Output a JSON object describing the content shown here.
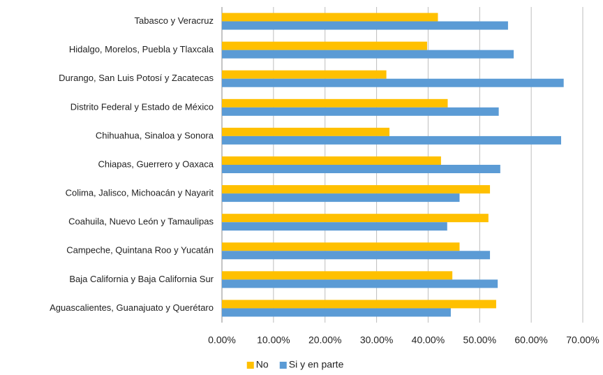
{
  "chart_data": {
    "type": "bar",
    "orientation": "horizontal",
    "categories": [
      "Tabasco y Veracruz",
      "Hidalgo, Morelos, Puebla y Tlaxcala",
      "Durango, San Luis Potosí y Zacatecas",
      "Distrito Federal y Estado de México",
      "Chihuahua, Sinaloa y Sonora",
      "Chiapas, Guerrero y Oaxaca",
      "Colima, Jalisco, Michoacán y Nayarit",
      "Coahuila, Nuevo León y Tamaulipas",
      "Campeche, Quintana Roo y Yucatán",
      "Baja California y Baja California Sur",
      "Aguascalientes, Guanajuato y Querétaro"
    ],
    "series": [
      {
        "name": "No",
        "color": "#ffc000",
        "values": [
          41.9,
          39.8,
          31.9,
          43.8,
          32.5,
          42.5,
          52.0,
          51.7,
          46.1,
          44.7,
          53.2
        ]
      },
      {
        "name": "Si y en parte",
        "color": "#5b9bd5",
        "values": [
          55.5,
          56.6,
          66.3,
          53.7,
          65.8,
          54.0,
          46.1,
          43.7,
          52.0,
          53.5,
          44.4
        ]
      }
    ],
    "xlim": [
      0,
      70
    ],
    "xticks": [
      {
        "value": 0,
        "label": "0.00%"
      },
      {
        "value": 10,
        "label": "10.00%"
      },
      {
        "value": 20,
        "label": "20.00%"
      },
      {
        "value": 30,
        "label": "30.00%"
      },
      {
        "value": 40,
        "label": "40.00%"
      },
      {
        "value": 50,
        "label": "50.00%"
      },
      {
        "value": 60,
        "label": "60.00%"
      },
      {
        "value": 70,
        "label": "70.00%"
      }
    ],
    "grid": true,
    "legend": "bottom"
  }
}
